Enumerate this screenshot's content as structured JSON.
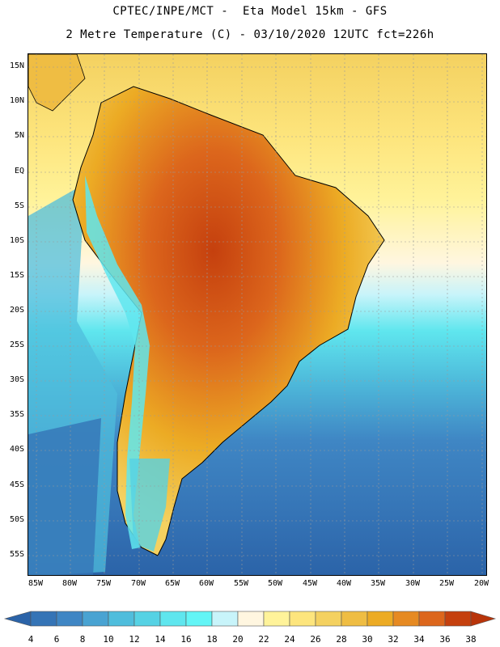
{
  "header": {
    "line1": "CPTEC/INPE/MCT -  Eta Model 15km - GFS",
    "line2": "2 Metre Temperature (C) - 03/10/2020 12UTC fct=226h"
  },
  "map": {
    "lat_labels": [
      "15N",
      "10N",
      "5N",
      "EQ",
      "5S",
      "10S",
      "15S",
      "20S",
      "25S",
      "30S",
      "35S",
      "40S",
      "45S",
      "50S",
      "55S"
    ],
    "lon_labels": [
      "85W",
      "80W",
      "75W",
      "70W",
      "65W",
      "60W",
      "55W",
      "50W",
      "45W",
      "40W",
      "35W",
      "30W",
      "25W",
      "20W"
    ]
  },
  "legend": {
    "values": [
      "4",
      "6",
      "8",
      "10",
      "12",
      "14",
      "16",
      "18",
      "20",
      "22",
      "24",
      "26",
      "28",
      "30",
      "32",
      "34",
      "36",
      "38"
    ],
    "colors": [
      "#2b63a8",
      "#3574b6",
      "#3f86c4",
      "#49a3d2",
      "#4fbddc",
      "#56d2e4",
      "#5fe6ee",
      "#63f5f6",
      "#c8f4fa",
      "#fff6e0",
      "#fff39a",
      "#fde57d",
      "#f4d160",
      "#efbd43",
      "#ecab24",
      "#e68a22",
      "#dc661c",
      "#c5400e",
      "#b8340a"
    ]
  }
}
